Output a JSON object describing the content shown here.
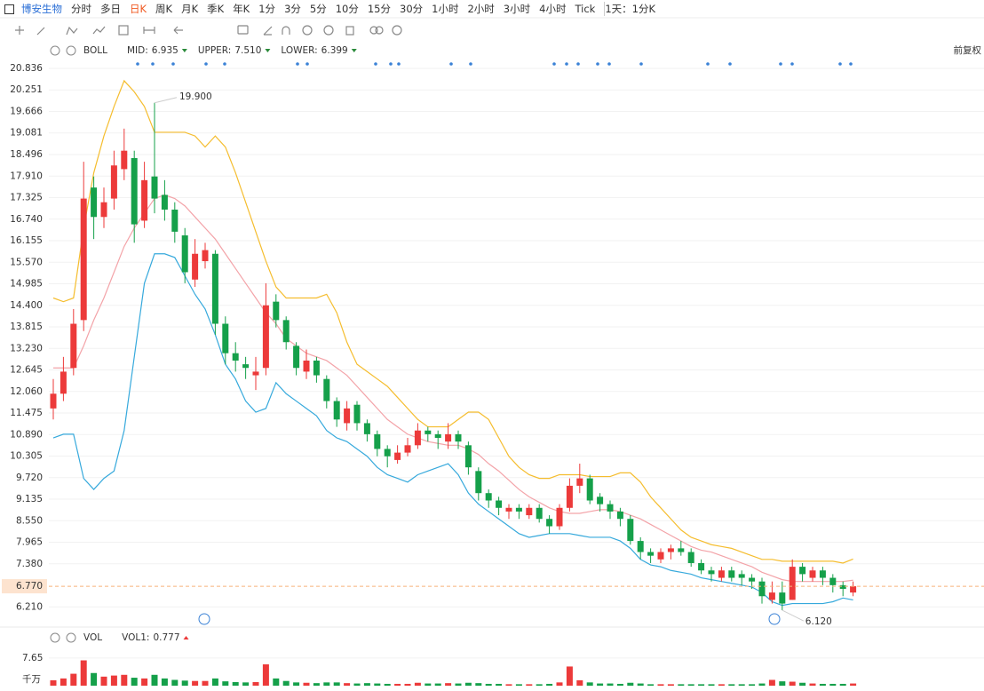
{
  "toolbar": {
    "stock": "博安生物",
    "periods": [
      "分时",
      "多日",
      "日K",
      "周K",
      "月K",
      "季K",
      "年K",
      "1分",
      "3分",
      "5分",
      "10分",
      "15分",
      "30分",
      "1小时",
      "2小时",
      "3小时",
      "4小时",
      "Tick"
    ],
    "selected_period": 2,
    "period_selector": "1天：1分K",
    "adjust": "前复权"
  },
  "chart_data": {
    "type": "candlestick",
    "ylim": [
      5.807,
      21.053
    ],
    "yticks": [
      20.836,
      20.251,
      19.666,
      19.081,
      18.496,
      {
        "value": 17.91,
        "label": "17.910"
      },
      17.325,
      {
        "value": 16.74,
        "label": "16.740"
      },
      16.155,
      {
        "value": 15.57,
        "label": "15.570"
      },
      14.985,
      {
        "value": 14.4,
        "label": "14.400"
      },
      13.815,
      {
        "value": 13.23,
        "label": "13.230"
      },
      12.645,
      {
        "value": 12.06,
        "label": "12.060"
      },
      11.475,
      {
        "value": 10.89,
        "label": "10.890"
      },
      10.305,
      {
        "value": 9.72,
        "label": "9.720"
      },
      9.135,
      {
        "value": 8.55,
        "label": "8.550"
      },
      7.965,
      {
        "value": 7.38,
        "label": "7.380"
      },
      {
        "value": 6.21,
        "label": "6.210"
      }
    ],
    "grid": true,
    "up_color": "#ec3a3a",
    "down_color": "#15a04a",
    "open": [
      11.6,
      12.0,
      12.7,
      14.0,
      17.6,
      16.8,
      17.3,
      18.1,
      18.4,
      16.7,
      17.9,
      17.4,
      17.0,
      16.3,
      15.1,
      15.6,
      15.8,
      13.9,
      13.1,
      12.8,
      12.5,
      12.7,
      14.5,
      14.0,
      13.3,
      12.6,
      12.9,
      12.4,
      11.8,
      11.2,
      11.7,
      11.2,
      10.9,
      10.5,
      10.2,
      10.4,
      10.6,
      11.0,
      10.9,
      10.7,
      10.9,
      10.6,
      9.9,
      9.3,
      9.1,
      8.8,
      8.9,
      8.7,
      8.9,
      8.6,
      8.4,
      8.9,
      9.5,
      9.7,
      9.2,
      9.0,
      8.8,
      8.6,
      8.0,
      7.7,
      7.5,
      7.7,
      7.8,
      7.7,
      7.4,
      7.2,
      7.0,
      7.2,
      7.1,
      7.0,
      6.9,
      6.4,
      6.6,
      6.4,
      7.3,
      7.0,
      7.2,
      7.0,
      6.8,
      6.6
    ],
    "high": [
      12.4,
      13.0,
      14.3,
      18.3,
      17.9,
      17.6,
      18.6,
      19.2,
      18.6,
      18.3,
      19.9,
      17.8,
      17.2,
      16.5,
      16.2,
      16.1,
      15.9,
      14.1,
      13.4,
      13.0,
      13.0,
      15.0,
      14.7,
      14.1,
      13.4,
      13.2,
      13.0,
      12.5,
      11.9,
      11.8,
      11.8,
      11.3,
      11.0,
      10.6,
      10.6,
      10.8,
      11.2,
      11.1,
      11.0,
      11.2,
      11.0,
      10.7,
      10.0,
      9.4,
      9.2,
      9.0,
      9.0,
      9.0,
      9.0,
      8.7,
      9.0,
      9.7,
      10.1,
      9.8,
      9.3,
      9.1,
      8.9,
      8.7,
      8.1,
      7.8,
      7.8,
      7.9,
      8.0,
      7.8,
      7.5,
      7.3,
      7.3,
      7.3,
      7.2,
      7.1,
      7.0,
      6.9,
      6.9,
      7.5,
      7.4,
      7.3,
      7.3,
      7.1,
      6.9,
      6.9
    ],
    "low": [
      11.3,
      11.8,
      12.5,
      13.7,
      16.2,
      16.5,
      17.0,
      17.8,
      16.1,
      16.5,
      16.9,
      16.7,
      16.1,
      15.0,
      14.9,
      15.4,
      13.6,
      12.8,
      12.6,
      12.4,
      12.1,
      12.5,
      13.8,
      13.2,
      12.5,
      12.4,
      12.3,
      11.6,
      11.1,
      11.0,
      11.0,
      10.7,
      10.3,
      10.0,
      10.1,
      10.3,
      10.5,
      10.7,
      10.5,
      10.5,
      10.5,
      9.8,
      9.1,
      8.9,
      8.7,
      8.6,
      8.6,
      8.6,
      8.5,
      8.2,
      8.3,
      8.8,
      9.3,
      9.0,
      8.8,
      8.6,
      8.4,
      7.9,
      7.5,
      7.4,
      7.4,
      7.5,
      7.6,
      7.3,
      7.1,
      6.9,
      6.9,
      6.9,
      6.8,
      6.7,
      6.3,
      6.3,
      6.12,
      6.4,
      6.9,
      6.9,
      6.8,
      6.6,
      6.5,
      6.5
    ],
    "close": [
      12.0,
      12.6,
      13.9,
      17.3,
      16.8,
      17.2,
      18.2,
      18.6,
      16.6,
      17.8,
      17.3,
      17.0,
      16.4,
      15.3,
      15.8,
      15.9,
      13.9,
      13.1,
      12.9,
      12.7,
      12.6,
      14.4,
      14.0,
      13.4,
      12.7,
      12.9,
      12.5,
      11.8,
      11.3,
      11.6,
      11.2,
      10.9,
      10.5,
      10.3,
      10.4,
      10.6,
      11.0,
      10.9,
      10.8,
      10.9,
      10.7,
      10.0,
      9.3,
      9.1,
      8.9,
      8.9,
      8.8,
      8.9,
      8.6,
      8.4,
      8.9,
      9.5,
      9.7,
      9.1,
      9.0,
      8.8,
      8.6,
      8.0,
      7.7,
      7.6,
      7.7,
      7.8,
      7.7,
      7.4,
      7.2,
      7.1,
      7.2,
      7.0,
      7.0,
      6.9,
      6.5,
      6.6,
      6.3,
      7.3,
      7.1,
      7.2,
      7.0,
      6.8,
      6.7,
      6.77
    ],
    "indicator": "BOLL",
    "series": [
      {
        "name": "MID:",
        "color": "#f3a3a8",
        "legend_value": "6.935",
        "values": [
          12.7,
          12.7,
          12.7,
          13.3,
          14.0,
          14.6,
          15.3,
          16.0,
          16.5,
          16.9,
          17.3,
          17.4,
          17.3,
          17.1,
          16.8,
          16.5,
          16.2,
          15.8,
          15.4,
          15.0,
          14.6,
          14.2,
          13.9,
          13.5,
          13.3,
          13.1,
          13.0,
          12.9,
          12.7,
          12.5,
          12.2,
          11.9,
          11.6,
          11.3,
          11.1,
          10.9,
          10.8,
          10.7,
          10.65,
          10.6,
          10.6,
          10.5,
          10.35,
          10.1,
          9.9,
          9.65,
          9.4,
          9.2,
          9.05,
          8.9,
          8.8,
          8.75,
          8.75,
          8.8,
          8.85,
          8.85,
          8.8,
          8.7,
          8.6,
          8.45,
          8.3,
          8.15,
          8.0,
          7.85,
          7.75,
          7.7,
          7.6,
          7.5,
          7.4,
          7.3,
          7.15,
          7.05,
          6.95,
          6.9,
          6.9,
          6.9,
          6.9,
          6.9,
          6.9,
          6.935
        ]
      },
      {
        "name": "UPPER:",
        "color": "#f5bd2e",
        "legend_value": "7.510",
        "values": [
          14.6,
          14.5,
          14.6,
          16.5,
          18.0,
          19.0,
          19.8,
          20.5,
          20.2,
          19.8,
          19.1,
          19.1,
          19.1,
          19.1,
          19.0,
          18.7,
          19.0,
          18.7,
          18.0,
          17.2,
          16.4,
          15.6,
          14.9,
          14.6,
          14.6,
          14.6,
          14.6,
          14.7,
          14.2,
          13.4,
          12.8,
          12.6,
          12.4,
          12.2,
          11.9,
          11.6,
          11.3,
          11.1,
          11.1,
          11.1,
          11.3,
          11.5,
          11.5,
          11.3,
          10.8,
          10.3,
          10.0,
          9.8,
          9.7,
          9.7,
          9.8,
          9.8,
          9.8,
          9.75,
          9.75,
          9.75,
          9.85,
          9.85,
          9.6,
          9.2,
          8.9,
          8.6,
          8.3,
          8.1,
          8.0,
          7.9,
          7.85,
          7.8,
          7.7,
          7.6,
          7.5,
          7.5,
          7.45,
          7.45,
          7.45,
          7.45,
          7.45,
          7.45,
          7.4,
          7.51
        ]
      },
      {
        "name": "LOWER:",
        "color": "#36a9dc",
        "legend_value": "6.399",
        "values": [
          10.8,
          10.9,
          10.9,
          9.7,
          9.4,
          9.7,
          9.9,
          11.0,
          13.0,
          15.0,
          15.8,
          15.8,
          15.7,
          15.2,
          14.7,
          14.3,
          13.6,
          12.8,
          12.4,
          11.8,
          11.5,
          11.6,
          12.3,
          12.0,
          11.8,
          11.6,
          11.4,
          11.0,
          10.8,
          10.7,
          10.5,
          10.3,
          10.0,
          9.8,
          9.7,
          9.6,
          9.8,
          9.9,
          10.0,
          10.1,
          9.8,
          9.3,
          9.0,
          8.8,
          8.6,
          8.4,
          8.2,
          8.1,
          8.15,
          8.2,
          8.2,
          8.2,
          8.15,
          8.1,
          8.1,
          8.1,
          8.0,
          7.8,
          7.5,
          7.35,
          7.3,
          7.2,
          7.15,
          7.1,
          7.0,
          6.95,
          6.9,
          6.85,
          6.8,
          6.75,
          6.6,
          6.35,
          6.25,
          6.3,
          6.3,
          6.3,
          6.3,
          6.35,
          6.45,
          6.399
        ]
      }
    ],
    "high_label": "19.900",
    "low_label": "6.120",
    "last_price": {
      "value": 6.77,
      "label": "6.770"
    },
    "volume": {
      "name": "VOL",
      "ma_name": "VOL1:",
      "ma_value": "0.777",
      "unit": "千万",
      "ylim": [
        0,
        8.6
      ],
      "yticks": [
        7.65
      ],
      "values": [
        1.5,
        2.0,
        3.3,
        7.0,
        3.5,
        2.5,
        2.8,
        3.0,
        2.2,
        2.0,
        3.0,
        2.0,
        1.6,
        1.4,
        1.3,
        1.3,
        2.0,
        1.2,
        1.0,
        0.9,
        1.0,
        5.9,
        2.0,
        1.3,
        0.9,
        0.8,
        0.7,
        0.9,
        0.9,
        0.7,
        0.6,
        0.7,
        0.6,
        0.5,
        0.5,
        0.5,
        0.8,
        0.6,
        0.6,
        0.7,
        0.6,
        0.8,
        0.7,
        0.5,
        0.5,
        0.4,
        0.4,
        0.4,
        0.4,
        0.5,
        0.9,
        5.3,
        1.5,
        0.9,
        0.6,
        0.6,
        0.5,
        0.8,
        0.6,
        0.4,
        0.4,
        0.4,
        0.4,
        0.4,
        0.4,
        0.4,
        0.4,
        0.4,
        0.4,
        0.4,
        0.6,
        1.6,
        1.2,
        1.1,
        0.8,
        0.6,
        0.5,
        0.5,
        0.5,
        0.6
      ]
    }
  }
}
